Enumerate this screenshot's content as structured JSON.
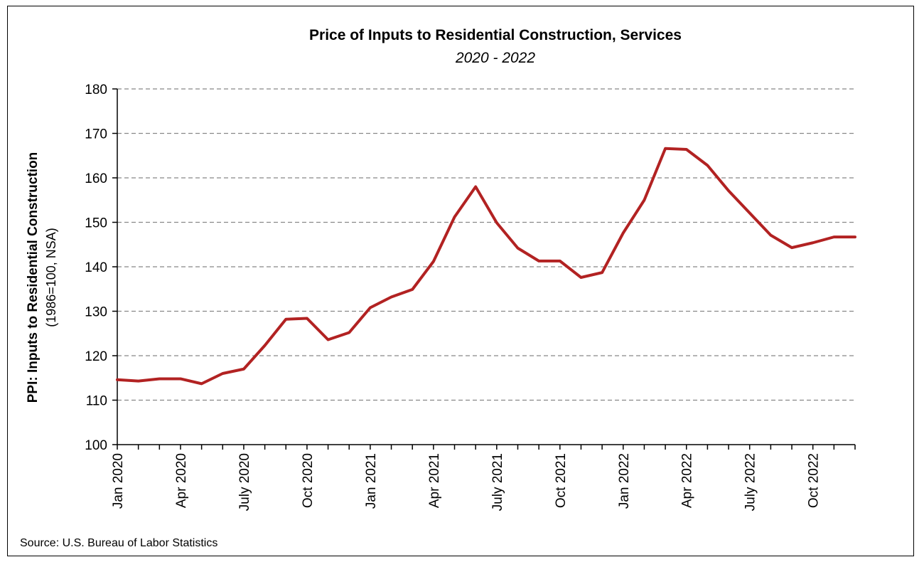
{
  "chart_data": {
    "type": "line",
    "title": "Price of Inputs to Residential Construction, Services",
    "subtitle": "2020 - 2022",
    "ylabel": "PPI: Inputs to Residential Construction",
    "ylabel_sub": "(1986=100, NSA)",
    "xlabel": "",
    "ylim": [
      100,
      180
    ],
    "yticks": [
      100,
      110,
      120,
      130,
      140,
      150,
      160,
      170,
      180
    ],
    "grid": true,
    "grid_style": "dashed",
    "line_color": "#b22222",
    "x": [
      "Jan 2020",
      "Feb 2020",
      "Mar 2020",
      "Apr 2020",
      "May 2020",
      "Jun 2020",
      "Jul 2020",
      "Aug 2020",
      "Sep 2020",
      "Oct 2020",
      "Nov 2020",
      "Dec 2020",
      "Jan 2021",
      "Feb 2021",
      "Mar 2021",
      "Apr 2021",
      "May 2021",
      "Jun 2021",
      "Jul 2021",
      "Aug 2021",
      "Sep 2021",
      "Oct 2021",
      "Nov 2021",
      "Dec 2021",
      "Jan 2022",
      "Feb 2022",
      "Mar 2022",
      "Apr 2022",
      "May 2022",
      "Jun 2022",
      "Jul 2022",
      "Aug 2022",
      "Sep 2022",
      "Oct 2022",
      "Nov 2022",
      "Dec 2022"
    ],
    "xtick_labels": [
      {
        "index": 0,
        "label": "Jan 2020"
      },
      {
        "index": 3,
        "label": "Apr 2020"
      },
      {
        "index": 6,
        "label": "July 2020"
      },
      {
        "index": 9,
        "label": "Oct 2020"
      },
      {
        "index": 12,
        "label": "Jan 2021"
      },
      {
        "index": 15,
        "label": "Apr 2021"
      },
      {
        "index": 18,
        "label": "July 2021"
      },
      {
        "index": 21,
        "label": "Oct 2021"
      },
      {
        "index": 24,
        "label": "Jan 2022"
      },
      {
        "index": 27,
        "label": "Apr 2022"
      },
      {
        "index": 30,
        "label": "July 2022"
      },
      {
        "index": 33,
        "label": "Oct 2022"
      }
    ],
    "series": [
      {
        "values": [
          114.6,
          114.3,
          114.8,
          114.8,
          113.7,
          116.0,
          117.0,
          122.3,
          128.2,
          128.4,
          123.6,
          125.2,
          130.8,
          133.2,
          134.9,
          141.2,
          151.2,
          158.0,
          149.9,
          144.2,
          141.3,
          141.3,
          137.6,
          138.7,
          147.6,
          155.0,
          166.6,
          166.4,
          162.8,
          157.1,
          152.1,
          147.1,
          144.3,
          145.4,
          146.7,
          146.7
        ]
      }
    ]
  },
  "source": "Source: U.S. Bureau of Labor Statistics"
}
